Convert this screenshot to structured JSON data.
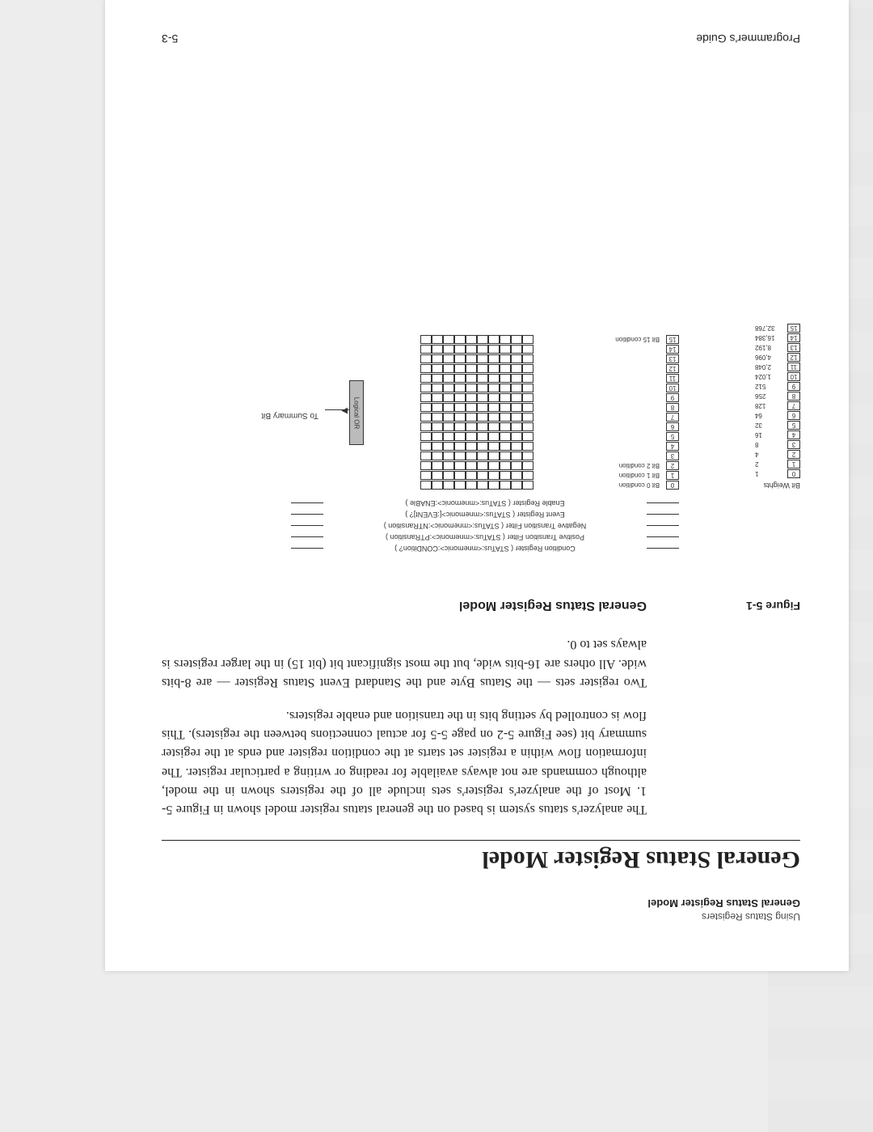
{
  "running_head": "Using Status Registers",
  "running_sub": "General Status Register Model",
  "title": "General Status Register Model",
  "para1": "The analyzer's status system is based on the general status register model shown in Figure 5-1. Most of the analyzer's register's sets include all of the registers shown in the model, although commands are not always available for reading or writing a particular register. The information flow within a register set starts at the condition register and ends at the register summary bit (see Figure 5-2 on page 5-5 for actual connections between the registers). This flow is controlled by setting bits in the transition and enable registers.",
  "para2": "Two register sets — the Status Byte and the Standard Event Status Register — are 8-bits wide. All others are 16-bits wide, but the most significant bit (bit 15) in the larger registers is always set to 0.",
  "figure": {
    "label": "Figure 5-1",
    "caption": "General Status Register Model",
    "bit_weights_title": "Bit Weights",
    "bit_weights": [
      {
        "bit": "0",
        "val": "1"
      },
      {
        "bit": "1",
        "val": "2"
      },
      {
        "bit": "2",
        "val": "4"
      },
      {
        "bit": "3",
        "val": "8"
      },
      {
        "bit": "4",
        "val": "16"
      },
      {
        "bit": "5",
        "val": "32"
      },
      {
        "bit": "6",
        "val": "64"
      },
      {
        "bit": "7",
        "val": "128"
      },
      {
        "bit": "8",
        "val": "256"
      },
      {
        "bit": "9",
        "val": "512"
      },
      {
        "bit": "10",
        "val": "1,024"
      },
      {
        "bit": "11",
        "val": "2,048"
      },
      {
        "bit": "12",
        "val": "4,096"
      },
      {
        "bit": "13",
        "val": "8,192"
      },
      {
        "bit": "14",
        "val": "16,384"
      },
      {
        "bit": "15",
        "val": "32,768"
      }
    ],
    "reg_labels": [
      "Condition Register ( STATus:<mnemonic>:CONDition? )",
      "Positive Transition Filter ( STATus:<mnemonic>:PTRansition )",
      "Negative Transition Filter ( STATus:<mnemonic>:NTRansition )",
      "Event Register ( STATus:<mnemonic>[:EVENt]? )",
      "Enable Register ( STATus:<mnemonic>:ENABle )"
    ],
    "conditions": [
      {
        "idx": "0",
        "lbl": "Bit 0 condition"
      },
      {
        "idx": "1",
        "lbl": "Bit 1 condition"
      },
      {
        "idx": "2",
        "lbl": "Bit 2 condition"
      },
      {
        "idx": "3",
        "lbl": ""
      },
      {
        "idx": "4",
        "lbl": ""
      },
      {
        "idx": "5",
        "lbl": ""
      },
      {
        "idx": "6",
        "lbl": ""
      },
      {
        "idx": "7",
        "lbl": ""
      },
      {
        "idx": "8",
        "lbl": ""
      },
      {
        "idx": "9",
        "lbl": ""
      },
      {
        "idx": "10",
        "lbl": ""
      },
      {
        "idx": "11",
        "lbl": ""
      },
      {
        "idx": "12",
        "lbl": ""
      },
      {
        "idx": "13",
        "lbl": ""
      },
      {
        "idx": "14",
        "lbl": ""
      },
      {
        "idx": "15",
        "lbl": "Bit 15 condition"
      }
    ],
    "logic_or": "Logical OR",
    "summary": "To Summary Bit"
  },
  "footer_left": "Programmer's Guide",
  "footer_right": "5-3"
}
